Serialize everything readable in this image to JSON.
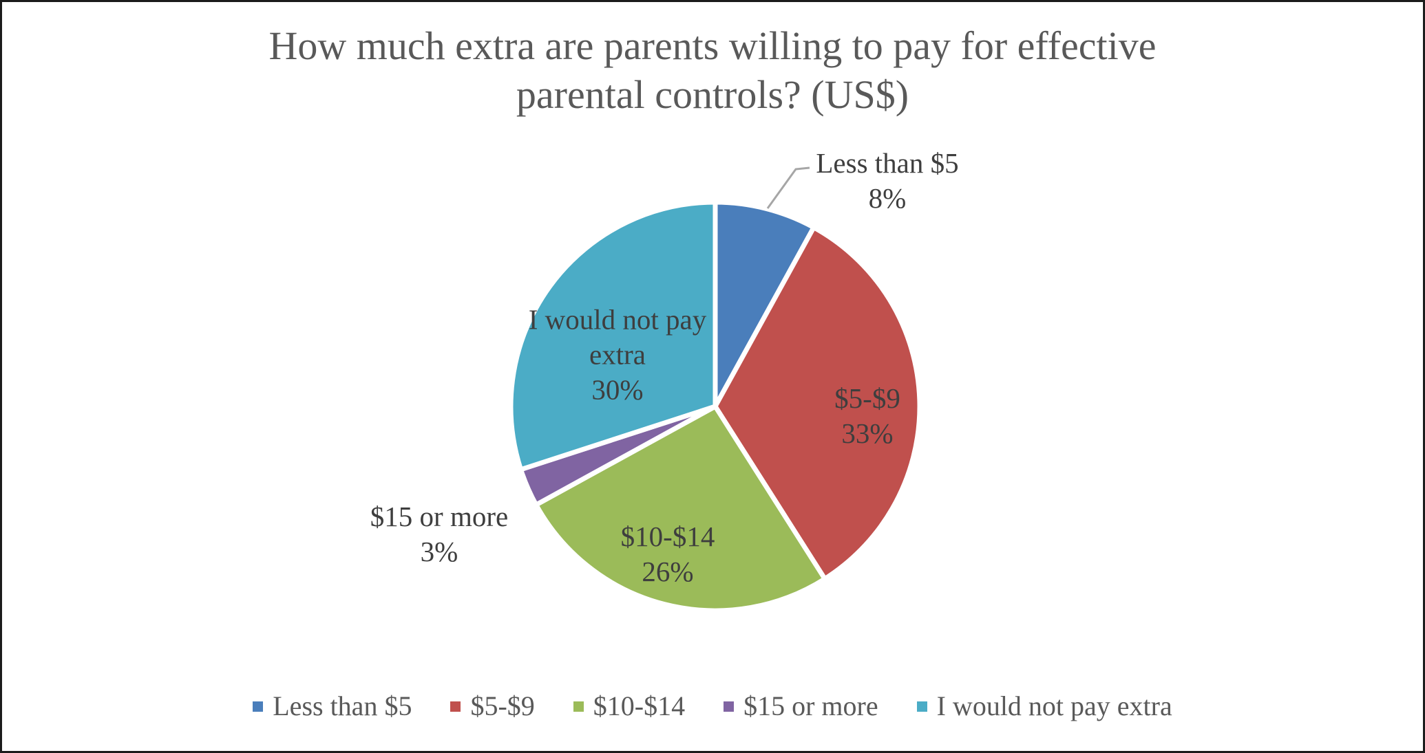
{
  "chart_data": {
    "type": "pie",
    "title": "How much extra are parents willing to pay for effective parental controls? (US$)",
    "title_line1": "How much extra are parents willing to pay for effective",
    "title_line2": "parental controls? (US$)",
    "unit": "%",
    "direction": "clockwise",
    "start_angle": "12 o'clock",
    "legend_position": "bottom",
    "data_label_format": "category name + percentage",
    "categories": [
      "Less than $5",
      "$5-$9",
      "$10-$14",
      "$15 or more",
      "I would not pay extra"
    ],
    "values": [
      8,
      33,
      26,
      3,
      30
    ],
    "slices": [
      {
        "label": "Less than $5",
        "value": 8,
        "pct": "8%",
        "color": "#4A7EBB",
        "label_placement": "outside-with-leader-line"
      },
      {
        "label": "$5-$9",
        "value": 33,
        "pct": "33%",
        "color": "#C0504D",
        "label_placement": "inside"
      },
      {
        "label": "$10-$14",
        "value": 26,
        "pct": "26%",
        "color": "#9BBB59",
        "label_placement": "inside"
      },
      {
        "label": "$15 or more",
        "value": 3,
        "pct": "3%",
        "color": "#8064A2",
        "label_placement": "outside"
      },
      {
        "label": "I would not pay extra",
        "value": 30,
        "pct": "30%",
        "color": "#4BACC6",
        "label_placement": "inside"
      }
    ]
  },
  "styles": {
    "title_color": "#595959",
    "label_color": "#3E3E3E",
    "legend_color": "#595959",
    "leader_line_color": "#A6A6A6",
    "slice_border_color": "#FFFFFF",
    "frame_border_color": "#1C1C1C",
    "background": "#FFFFFF"
  }
}
